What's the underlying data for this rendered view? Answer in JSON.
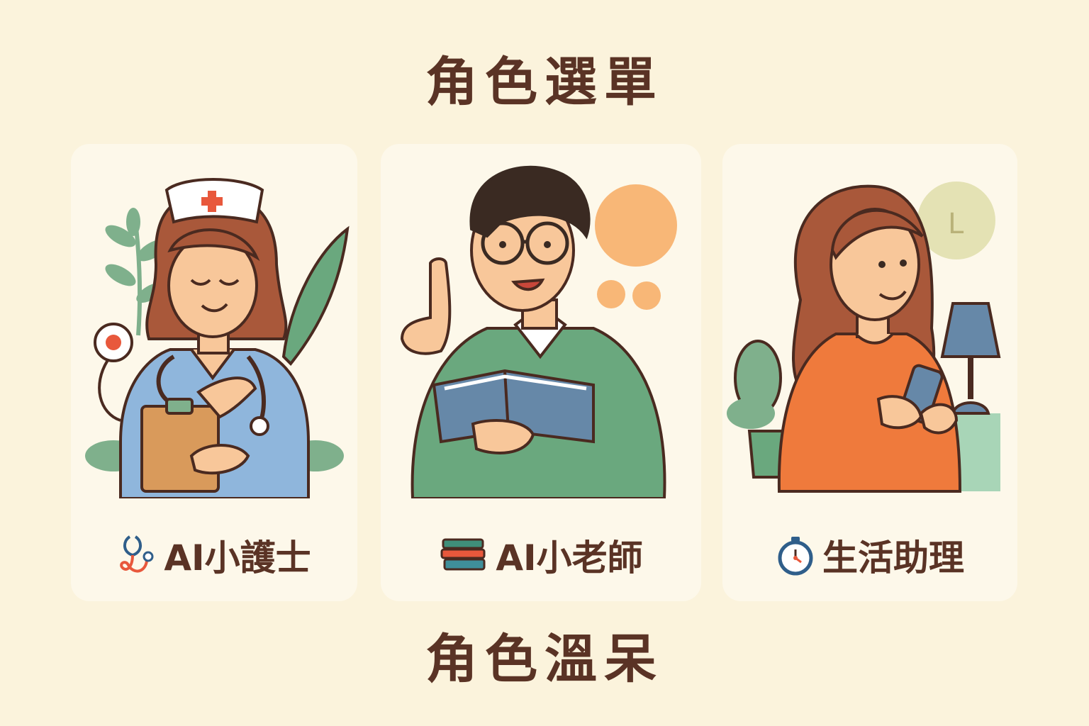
{
  "menu_title": "角色選單",
  "cards": [
    {
      "label": "AI小護士",
      "icon": "stethoscope-icon"
    },
    {
      "label": "AI小老師",
      "icon": "books-icon"
    },
    {
      "label": "生活助理",
      "icon": "stopwatch-icon"
    }
  ],
  "clock_letter": "L",
  "bottom_title": "角色溫呆",
  "colors": {
    "background": "#fbf3dc",
    "card": "#fdf8ea",
    "text": "#5a3325",
    "scrubs_blue": "#8fb6dc",
    "sweater_green": "#6aa87e",
    "shirt_orange": "#ef7a3c",
    "accent_peach": "#f8b777"
  }
}
